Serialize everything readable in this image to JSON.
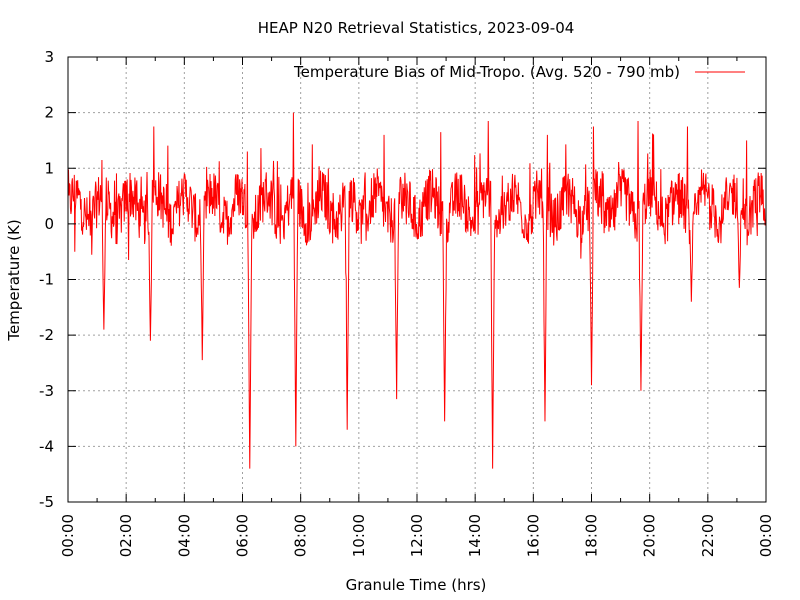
{
  "chart_data": {
    "type": "line",
    "title": "HEAP N20 Retrieval Statistics, 2023-09-04",
    "xlabel": "Granule Time (hrs)",
    "ylabel": "Temperature (K)",
    "xlim": [
      "00:00",
      "24:00"
    ],
    "ylim": [
      -5,
      3
    ],
    "x_ticks": [
      "00:00",
      "02:00",
      "04:00",
      "06:00",
      "08:00",
      "10:00",
      "12:00",
      "14:00",
      "16:00",
      "18:00",
      "20:00",
      "22:00",
      "00:00"
    ],
    "y_ticks": [
      "3",
      "2",
      "1",
      "0",
      "-1",
      "-2",
      "-3",
      "-4",
      "-5"
    ],
    "grid": true,
    "legend_position": "top-right",
    "series": [
      {
        "name": "Temperature Bias of Mid-Tropo. (Avg. 520 - 790 mb)",
        "color": "#ff0000",
        "sampling": "noisy high-frequency signal around ~0.3 K; representative extremes listed",
        "baseline_mean": 0.3,
        "peaks": [
          {
            "x": "01:14",
            "y": 2.1
          },
          {
            "x": "02:57",
            "y": 1.75
          },
          {
            "x": "04:37",
            "y": 1.65
          },
          {
            "x": "06:10",
            "y": 1.3
          },
          {
            "x": "07:45",
            "y": 2.0
          },
          {
            "x": "09:34",
            "y": 1.85
          },
          {
            "x": "10:52",
            "y": 1.6
          },
          {
            "x": "12:49",
            "y": 1.65
          },
          {
            "x": "14:27",
            "y": 1.85
          },
          {
            "x": "16:29",
            "y": 1.6
          },
          {
            "x": "18:04",
            "y": 1.75
          },
          {
            "x": "19:36",
            "y": 1.85
          },
          {
            "x": "21:18",
            "y": 1.75
          },
          {
            "x": "23:20",
            "y": 1.5
          }
        ],
        "troughs": [
          {
            "x": "00:14",
            "y": -0.5
          },
          {
            "x": "01:14",
            "y": -1.9
          },
          {
            "x": "02:05",
            "y": -0.65
          },
          {
            "x": "02:50",
            "y": -2.1
          },
          {
            "x": "04:37",
            "y": -2.45
          },
          {
            "x": "06:15",
            "y": -4.4
          },
          {
            "x": "07:50",
            "y": -4.0
          },
          {
            "x": "09:36",
            "y": -3.7
          },
          {
            "x": "11:18",
            "y": -3.15
          },
          {
            "x": "12:57",
            "y": -3.55
          },
          {
            "x": "14:36",
            "y": -4.4
          },
          {
            "x": "16:24",
            "y": -3.55
          },
          {
            "x": "18:00",
            "y": -2.9
          },
          {
            "x": "19:42",
            "y": -3.0
          },
          {
            "x": "21:26",
            "y": -1.4
          },
          {
            "x": "23:05",
            "y": -1.15
          }
        ]
      }
    ]
  }
}
